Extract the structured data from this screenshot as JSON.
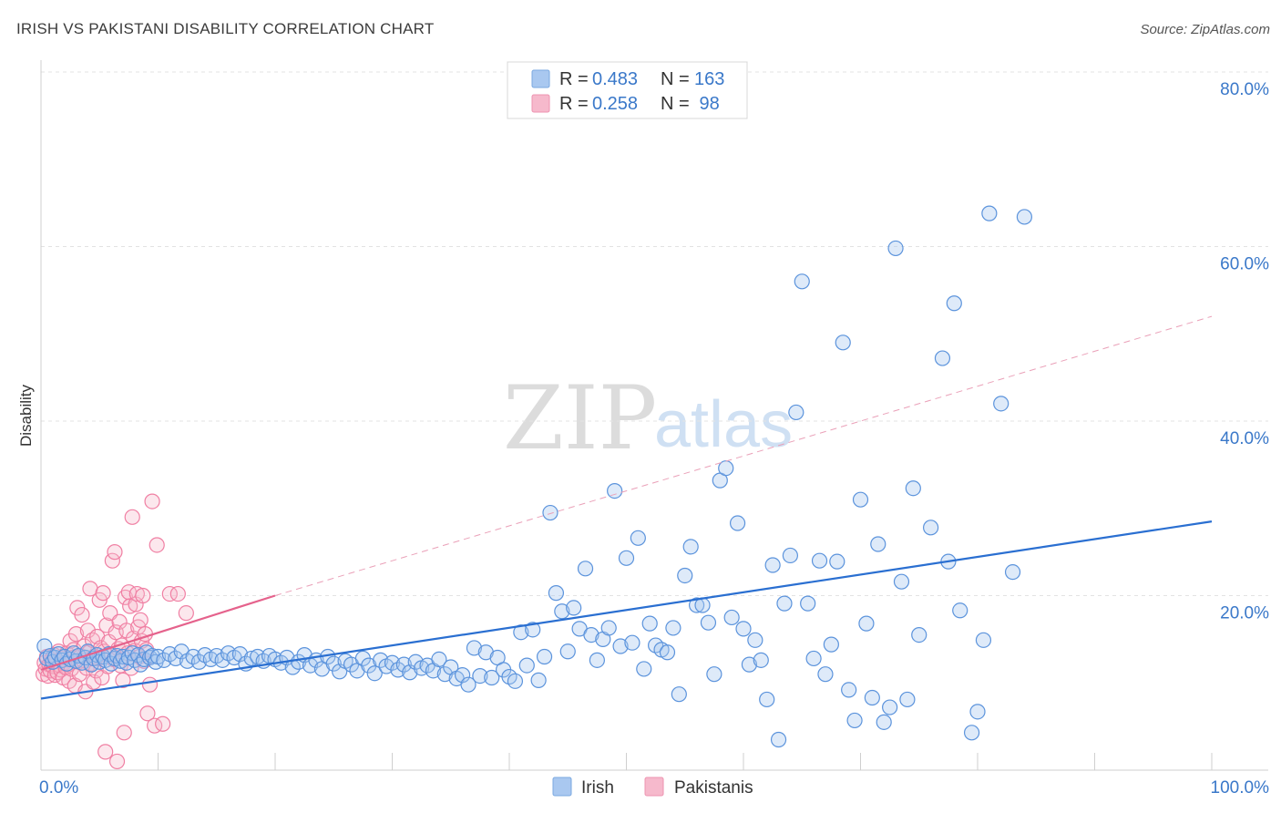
{
  "header": {
    "title": "IRISH VS PAKISTANI DISABILITY CORRELATION CHART",
    "source": "Source: ZipAtlas.com"
  },
  "watermark": {
    "zip": "ZIP",
    "atlas": "atlas"
  },
  "legend_top": [
    {
      "r_label": "R = ",
      "r_value": "0.483",
      "n_label": "N = ",
      "n_value": "163",
      "color": "#a9c8f0"
    },
    {
      "r_label": "R = ",
      "r_value": "0.258",
      "n_label": "N = ",
      "n_value": " 98",
      "color": "#f6b9cc"
    }
  ],
  "legend_bottom": [
    {
      "label": "Irish",
      "color": "#a9c8f0"
    },
    {
      "label": "Pakistanis",
      "color": "#f6b9cc"
    }
  ],
  "chart_data": {
    "type": "scatter",
    "title": "IRISH VS PAKISTANI DISABILITY CORRELATION CHART",
    "xlabel": "",
    "ylabel": "Disability",
    "xlim": [
      0,
      100
    ],
    "ylim": [
      0,
      80
    ],
    "x_tick_labels": [
      "0.0%",
      "100.0%"
    ],
    "y_ticks": [
      20,
      40,
      60,
      80
    ],
    "y_tick_labels": [
      "20.0%",
      "40.0%",
      "60.0%",
      "80.0%"
    ],
    "grid": true,
    "legend_position": "top-center",
    "colors": {
      "irish": "#5b93dc",
      "irish_line": "#2a6fd1",
      "pakistani": "#f07fa3",
      "pakistani_line": "#e5628c"
    },
    "series": [
      {
        "name": "Irish",
        "trend": {
          "x0": 0,
          "y0": 8.2,
          "x1": 100,
          "y1": 28.5
        },
        "points": [
          [
            0.3,
            14.2
          ],
          [
            0.5,
            12.8
          ],
          [
            0.8,
            13.1
          ],
          [
            1.0,
            12.4
          ],
          [
            1.2,
            12.9
          ],
          [
            1.5,
            13.3
          ],
          [
            1.8,
            12.6
          ],
          [
            2.0,
            13.0
          ],
          [
            2.2,
            12.2
          ],
          [
            2.5,
            12.7
          ],
          [
            2.8,
            13.4
          ],
          [
            3.0,
            12.5
          ],
          [
            3.2,
            13.1
          ],
          [
            3.5,
            12.3
          ],
          [
            3.8,
            12.9
          ],
          [
            4.0,
            13.6
          ],
          [
            4.3,
            12.1
          ],
          [
            4.5,
            12.8
          ],
          [
            4.8,
            13.2
          ],
          [
            5.0,
            12.4
          ],
          [
            5.3,
            13.0
          ],
          [
            5.5,
            12.6
          ],
          [
            5.8,
            13.3
          ],
          [
            6.0,
            12.2
          ],
          [
            6.3,
            12.8
          ],
          [
            6.5,
            13.1
          ],
          [
            6.8,
            12.5
          ],
          [
            7.0,
            13.0
          ],
          [
            7.3,
            12.3
          ],
          [
            7.5,
            12.9
          ],
          [
            7.8,
            13.4
          ],
          [
            8.0,
            12.6
          ],
          [
            8.3,
            13.2
          ],
          [
            8.5,
            12.1
          ],
          [
            8.8,
            12.7
          ],
          [
            9.0,
            13.5
          ],
          [
            9.3,
            12.9
          ],
          [
            9.5,
            13.1
          ],
          [
            9.8,
            12.4
          ],
          [
            10.0,
            13.0
          ],
          [
            10.5,
            12.6
          ],
          [
            11.0,
            13.3
          ],
          [
            11.5,
            12.8
          ],
          [
            12.0,
            13.6
          ],
          [
            12.5,
            12.5
          ],
          [
            13.0,
            13.0
          ],
          [
            13.5,
            12.4
          ],
          [
            14.0,
            13.2
          ],
          [
            14.5,
            12.7
          ],
          [
            15.0,
            13.1
          ],
          [
            15.5,
            12.6
          ],
          [
            16.0,
            13.4
          ],
          [
            16.5,
            12.9
          ],
          [
            17.0,
            13.3
          ],
          [
            17.5,
            12.2
          ],
          [
            18.0,
            12.8
          ],
          [
            18.5,
            13.0
          ],
          [
            19.0,
            12.5
          ],
          [
            19.5,
            13.1
          ],
          [
            20.0,
            12.7
          ],
          [
            20.5,
            12.3
          ],
          [
            21.0,
            12.9
          ],
          [
            21.5,
            11.8
          ],
          [
            22.0,
            12.4
          ],
          [
            22.5,
            13.2
          ],
          [
            23.0,
            12.0
          ],
          [
            23.5,
            12.6
          ],
          [
            24.0,
            11.6
          ],
          [
            24.5,
            13.0
          ],
          [
            25.0,
            12.2
          ],
          [
            25.5,
            11.3
          ],
          [
            26.0,
            12.5
          ],
          [
            26.5,
            12.1
          ],
          [
            27.0,
            11.4
          ],
          [
            27.5,
            12.8
          ],
          [
            28.0,
            12.0
          ],
          [
            28.5,
            11.1
          ],
          [
            29.0,
            12.6
          ],
          [
            29.5,
            11.9
          ],
          [
            30.0,
            12.3
          ],
          [
            30.5,
            11.5
          ],
          [
            31.0,
            12.1
          ],
          [
            31.5,
            11.2
          ],
          [
            32.0,
            12.4
          ],
          [
            32.5,
            11.7
          ],
          [
            33.0,
            12.0
          ],
          [
            33.5,
            11.4
          ],
          [
            34.0,
            12.7
          ],
          [
            34.5,
            11.0
          ],
          [
            35.0,
            11.8
          ],
          [
            35.5,
            10.5
          ],
          [
            36.0,
            10.9
          ],
          [
            36.5,
            9.8
          ],
          [
            37.0,
            14.0
          ],
          [
            37.5,
            10.8
          ],
          [
            38.0,
            13.5
          ],
          [
            38.5,
            10.6
          ],
          [
            39.0,
            12.9
          ],
          [
            39.5,
            11.5
          ],
          [
            40.0,
            10.7
          ],
          [
            40.5,
            10.2
          ],
          [
            41.0,
            15.8
          ],
          [
            41.5,
            12.0
          ],
          [
            42.0,
            16.1
          ],
          [
            42.5,
            10.3
          ],
          [
            43.0,
            13.0
          ],
          [
            43.5,
            29.5
          ],
          [
            44.0,
            20.3
          ],
          [
            44.5,
            18.2
          ],
          [
            45.0,
            13.6
          ],
          [
            45.5,
            18.6
          ],
          [
            46.0,
            16.2
          ],
          [
            46.5,
            23.1
          ],
          [
            47.0,
            15.5
          ],
          [
            47.5,
            12.6
          ],
          [
            48.0,
            15.0
          ],
          [
            48.5,
            16.3
          ],
          [
            49.0,
            32.0
          ],
          [
            49.5,
            14.2
          ],
          [
            50.0,
            24.3
          ],
          [
            50.5,
            14.6
          ],
          [
            51.0,
            26.6
          ],
          [
            51.5,
            11.6
          ],
          [
            52.0,
            16.8
          ],
          [
            52.5,
            14.3
          ],
          [
            53.0,
            13.8
          ],
          [
            53.5,
            13.5
          ],
          [
            54.0,
            16.3
          ],
          [
            54.5,
            8.7
          ],
          [
            55.0,
            22.3
          ],
          [
            55.5,
            25.6
          ],
          [
            56.0,
            18.9
          ],
          [
            56.5,
            18.9
          ],
          [
            57.0,
            16.9
          ],
          [
            57.5,
            11.0
          ],
          [
            58.0,
            33.2
          ],
          [
            58.5,
            34.6
          ],
          [
            59.0,
            17.5
          ],
          [
            59.5,
            28.3
          ],
          [
            60.0,
            16.2
          ],
          [
            60.5,
            12.1
          ],
          [
            61.0,
            14.9
          ],
          [
            61.5,
            12.6
          ],
          [
            62.0,
            8.1
          ],
          [
            62.5,
            23.5
          ],
          [
            63.0,
            3.5
          ],
          [
            63.5,
            19.1
          ],
          [
            64.0,
            24.6
          ],
          [
            64.5,
            41.0
          ],
          [
            65.0,
            56.0
          ],
          [
            65.5,
            19.1
          ],
          [
            66.0,
            12.8
          ],
          [
            66.5,
            24.0
          ],
          [
            67.0,
            11.0
          ],
          [
            67.5,
            14.4
          ],
          [
            68.0,
            23.9
          ],
          [
            68.5,
            49.0
          ],
          [
            69.0,
            9.2
          ],
          [
            69.5,
            5.7
          ],
          [
            70.0,
            31.0
          ],
          [
            70.5,
            16.8
          ],
          [
            71.0,
            8.3
          ],
          [
            71.5,
            25.9
          ],
          [
            72.0,
            5.5
          ],
          [
            72.5,
            7.2
          ],
          [
            73.0,
            59.8
          ],
          [
            73.5,
            21.6
          ],
          [
            74.0,
            8.1
          ],
          [
            74.5,
            32.3
          ],
          [
            75.0,
            15.5
          ],
          [
            76.0,
            27.8
          ],
          [
            77.0,
            47.2
          ],
          [
            77.5,
            23.9
          ],
          [
            78.0,
            53.5
          ],
          [
            78.5,
            18.3
          ],
          [
            79.5,
            4.3
          ],
          [
            80.0,
            6.7
          ],
          [
            80.5,
            14.9
          ],
          [
            81.0,
            63.8
          ],
          [
            82.0,
            42.0
          ],
          [
            83.0,
            22.7
          ],
          [
            84.0,
            63.4
          ]
        ]
      },
      {
        "name": "Pakistanis",
        "trend": {
          "x0": 0,
          "y0": 11.5,
          "x1": 20,
          "y1": 20.0,
          "dash_x1": 100,
          "dash_y1": 52.0
        },
        "points": [
          [
            0.2,
            11.0
          ],
          [
            0.3,
            12.3
          ],
          [
            0.4,
            11.6
          ],
          [
            0.5,
            13.0
          ],
          [
            0.6,
            10.8
          ],
          [
            0.7,
            12.1
          ],
          [
            0.8,
            11.4
          ],
          [
            0.9,
            12.7
          ],
          [
            1.0,
            11.9
          ],
          [
            1.1,
            13.2
          ],
          [
            1.2,
            10.9
          ],
          [
            1.3,
            12.5
          ],
          [
            1.4,
            11.2
          ],
          [
            1.5,
            13.6
          ],
          [
            1.6,
            12.0
          ],
          [
            1.7,
            11.5
          ],
          [
            1.8,
            12.8
          ],
          [
            1.9,
            10.6
          ],
          [
            2.0,
            12.3
          ],
          [
            2.1,
            11.8
          ],
          [
            2.2,
            13.4
          ],
          [
            2.3,
            12.1
          ],
          [
            2.4,
            10.2
          ],
          [
            2.5,
            14.8
          ],
          [
            2.6,
            11.6
          ],
          [
            2.7,
            12.9
          ],
          [
            2.8,
            13.8
          ],
          [
            2.9,
            9.7
          ],
          [
            3.0,
            15.6
          ],
          [
            3.1,
            18.6
          ],
          [
            3.2,
            12.4
          ],
          [
            3.3,
            11.0
          ],
          [
            3.4,
            13.1
          ],
          [
            3.5,
            17.8
          ],
          [
            3.6,
            12.6
          ],
          [
            3.7,
            14.2
          ],
          [
            3.8,
            9.0
          ],
          [
            3.9,
            11.7
          ],
          [
            4.0,
            16.0
          ],
          [
            4.1,
            13.5
          ],
          [
            4.2,
            20.8
          ],
          [
            4.3,
            12.2
          ],
          [
            4.4,
            14.9
          ],
          [
            4.5,
            10.1
          ],
          [
            4.6,
            13.0
          ],
          [
            4.7,
            11.4
          ],
          [
            4.8,
            15.3
          ],
          [
            4.9,
            12.8
          ],
          [
            5.0,
            19.5
          ],
          [
            5.1,
            14.0
          ],
          [
            5.2,
            10.6
          ],
          [
            5.3,
            20.3
          ],
          [
            5.4,
            13.6
          ],
          [
            5.5,
            2.1
          ],
          [
            5.6,
            16.6
          ],
          [
            5.7,
            11.9
          ],
          [
            5.8,
            14.7
          ],
          [
            5.9,
            18.0
          ],
          [
            6.0,
            13.2
          ],
          [
            6.1,
            24.0
          ],
          [
            6.2,
            12.7
          ],
          [
            6.3,
            25.0
          ],
          [
            6.4,
            15.8
          ],
          [
            6.5,
            1.0
          ],
          [
            6.6,
            13.9
          ],
          [
            6.7,
            17.0
          ],
          [
            6.8,
            12.0
          ],
          [
            6.9,
            14.3
          ],
          [
            7.0,
            10.3
          ],
          [
            7.1,
            4.3
          ],
          [
            7.2,
            19.8
          ],
          [
            7.3,
            16.0
          ],
          [
            7.4,
            13.4
          ],
          [
            7.5,
            20.4
          ],
          [
            7.6,
            18.8
          ],
          [
            7.7,
            11.7
          ],
          [
            7.8,
            29.0
          ],
          [
            7.9,
            15.1
          ],
          [
            8.0,
            13.7
          ],
          [
            8.1,
            19.0
          ],
          [
            8.2,
            20.2
          ],
          [
            8.3,
            16.4
          ],
          [
            8.4,
            13.0
          ],
          [
            8.5,
            17.2
          ],
          [
            8.6,
            14.8
          ],
          [
            8.7,
            20.0
          ],
          [
            8.8,
            12.5
          ],
          [
            8.9,
            15.6
          ],
          [
            9.0,
            13.8
          ],
          [
            9.1,
            6.5
          ],
          [
            9.3,
            9.8
          ],
          [
            9.5,
            30.8
          ],
          [
            9.7,
            5.1
          ],
          [
            9.9,
            25.8
          ],
          [
            10.4,
            5.3
          ],
          [
            11.0,
            20.2
          ],
          [
            11.7,
            20.2
          ],
          [
            12.4,
            18.0
          ]
        ]
      }
    ]
  }
}
